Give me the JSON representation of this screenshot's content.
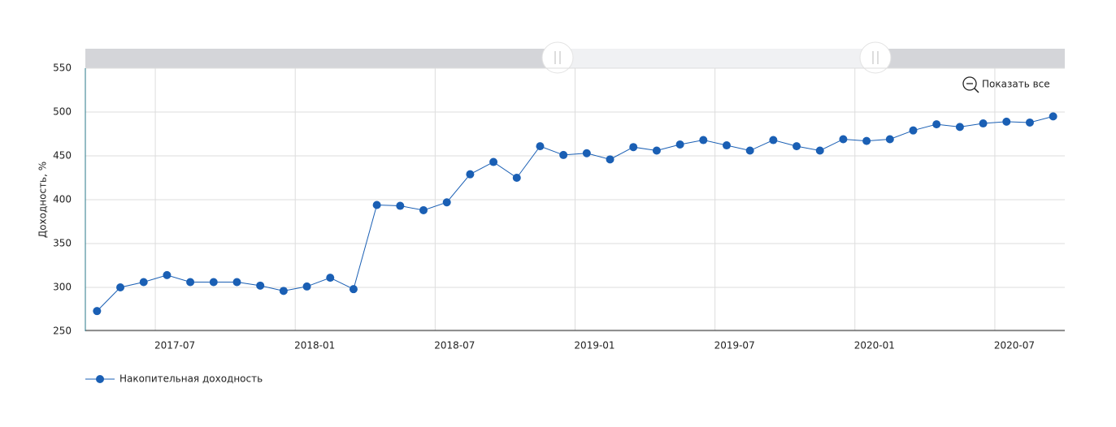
{
  "chart_data": {
    "type": "line",
    "y_label": "Доходность, %",
    "zoom_button": "Показать все",
    "x": [
      "2017-04",
      "2017-05",
      "2017-06",
      "2017-07",
      "2017-08",
      "2017-09",
      "2017-10",
      "2017-11",
      "2017-12",
      "2018-01",
      "2018-02",
      "2018-03",
      "2018-04",
      "2018-05",
      "2018-06",
      "2018-07",
      "2018-08",
      "2018-09",
      "2018-10",
      "2018-11",
      "2018-12",
      "2019-01",
      "2019-02",
      "2019-03",
      "2019-04",
      "2019-05",
      "2019-06",
      "2019-07",
      "2019-08",
      "2019-09",
      "2019-10",
      "2019-11",
      "2019-12",
      "2020-01",
      "2020-02",
      "2020-03",
      "2020-04",
      "2020-05",
      "2020-06",
      "2020-07",
      "2020-08",
      "2020-09"
    ],
    "series": [
      {
        "name": "Накопительная доходность",
        "color": "#1a5fb4",
        "values": [
          273,
          300,
          306,
          314,
          306,
          306,
          306,
          302,
          296,
          301,
          311,
          298,
          394,
          393,
          388,
          397,
          429,
          443,
          425,
          461,
          451,
          453,
          446,
          460,
          456,
          463,
          468,
          462,
          456,
          468,
          461,
          456,
          469,
          467,
          469,
          479,
          486,
          483,
          487,
          489,
          488,
          495
        ]
      }
    ],
    "xlim": [
      "2017-04",
      "2020-10"
    ],
    "xticks": [
      "2017-07",
      "2018-01",
      "2018-07",
      "2019-01",
      "2019-07",
      "2020-01",
      "2020-07"
    ],
    "ylim": [
      250,
      550
    ],
    "yticks": [
      250,
      300,
      350,
      400,
      450,
      500,
      550
    ],
    "grid": true
  }
}
